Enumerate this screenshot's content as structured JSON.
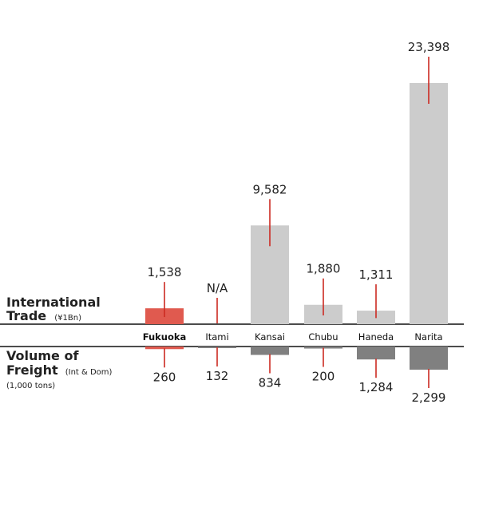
{
  "chart_data": {
    "type": "bar",
    "categories": [
      "Fukuoka",
      "Itami",
      "Kansai",
      "Chubu",
      "Haneda",
      "Narita"
    ],
    "highlight_category": "Fukuoka",
    "series": [
      {
        "name": "International Trade",
        "unit": "(¥1Bn)",
        "values": [
          1538,
          null,
          9582,
          1880,
          1311,
          23398
        ],
        "labels": [
          "1,538",
          "N/A",
          "9,582",
          "1,880",
          "1,311",
          "23,398"
        ],
        "direction": "up"
      },
      {
        "name": "Volume of Freight",
        "name_suffix": "(Int & Dom)",
        "unit": "(1,000 tons)",
        "values": [
          260,
          132,
          834,
          200,
          1284,
          2299
        ],
        "labels": [
          "260",
          "132",
          "834",
          "200",
          "1,284",
          "2,299"
        ],
        "direction": "down"
      }
    ],
    "top_title_line1": "International",
    "top_title_line2": "Trade",
    "top_unit": "(¥1Bn)",
    "bottom_title_line1": "Volume of",
    "bottom_title_line2": "Freight",
    "bottom_title_suffix": "(Int & Dom)",
    "bottom_unit": "(1,000 tons)",
    "colors": {
      "highlight": "#e05a4f",
      "top_bar": "#cccccc",
      "bottom_bar": "#808080",
      "leader": "#cc2a22",
      "axis": "#111111"
    }
  }
}
